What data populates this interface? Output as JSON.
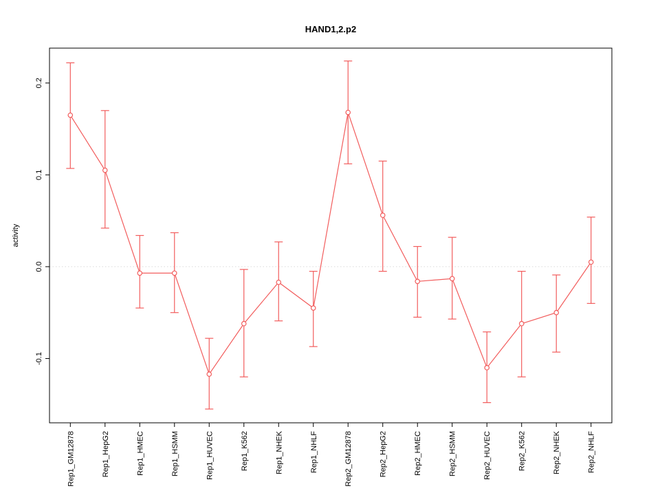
{
  "chart_data": {
    "type": "line",
    "title": "HAND1,2.p2",
    "xlabel": "",
    "ylabel": "activity",
    "ylim": [
      -0.17,
      0.238
    ],
    "xlim": [
      0.4,
      16.6
    ],
    "yticks": [
      -0.1,
      0.0,
      0.1,
      0.2
    ],
    "ytick_labels": [
      "-0.1",
      "0.0",
      "0.1",
      "0.2"
    ],
    "grid": "dotted horizontal reference line at y = 0",
    "legend": "none",
    "series_color": "#f25c5c",
    "reference_line_color": "#d9d9d9",
    "point_style": "open-circle",
    "error_bars": true,
    "categories": [
      "Rep1_GM12878",
      "Rep1_HepG2",
      "Rep1_HMEC",
      "Rep1_HSMM",
      "Rep1_HUVEC",
      "Rep1_K562",
      "Rep1_NHEK",
      "Rep1_NHLF",
      "Rep2_GM12878",
      "Rep2_HepG2",
      "Rep2_HMEC",
      "Rep2_HSMM",
      "Rep2_HUVEC",
      "Rep2_K562",
      "Rep2_NHEK",
      "Rep2_NHLF"
    ],
    "values": [
      0.165,
      0.105,
      -0.007,
      -0.007,
      -0.117,
      -0.062,
      -0.017,
      -0.045,
      0.168,
      0.056,
      -0.016,
      -0.013,
      -0.11,
      -0.062,
      -0.05,
      0.005
    ],
    "ci_low": [
      0.107,
      0.042,
      -0.045,
      -0.05,
      -0.155,
      -0.12,
      -0.059,
      -0.087,
      0.112,
      -0.005,
      -0.055,
      -0.057,
      -0.148,
      -0.12,
      -0.093,
      -0.04
    ],
    "ci_high": [
      0.222,
      0.17,
      0.034,
      0.037,
      -0.078,
      -0.003,
      0.027,
      -0.005,
      0.224,
      0.115,
      0.022,
      0.032,
      -0.071,
      -0.005,
      -0.009,
      0.054
    ]
  }
}
